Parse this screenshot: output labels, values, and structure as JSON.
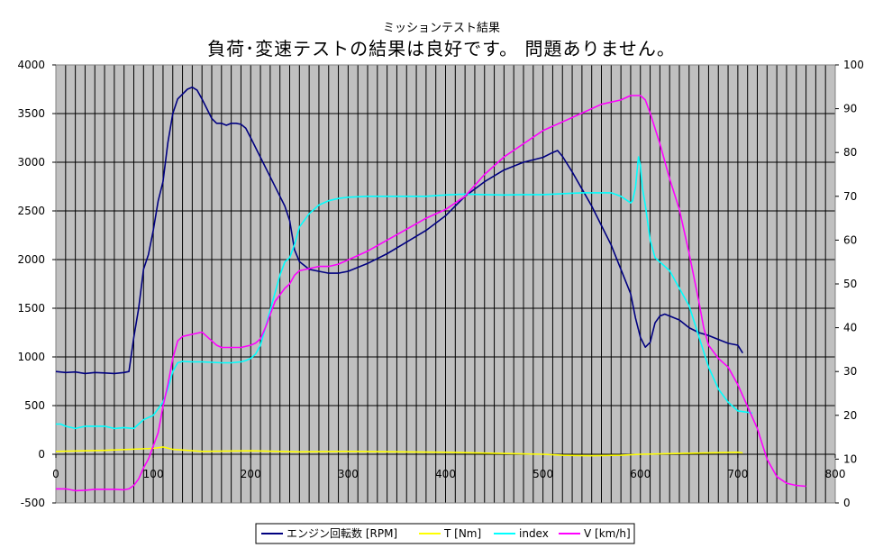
{
  "chart_data": {
    "type": "line",
    "title": "ミッションテスト結果",
    "subtitle": "負荷･変速テストの結果は良好です。 問題ありません。",
    "x_ticks": [
      0,
      100,
      200,
      300,
      400,
      500,
      600,
      700,
      800
    ],
    "xlim": [
      0,
      800
    ],
    "ylim_left": [
      -500,
      4000
    ],
    "y_ticks_left": [
      -500,
      0,
      500,
      1000,
      1500,
      2000,
      2500,
      3000,
      3500,
      4000
    ],
    "ylim_right": [
      0,
      100
    ],
    "y_ticks_right": [
      0,
      10,
      20,
      30,
      40,
      50,
      60,
      70,
      80,
      90,
      100
    ],
    "grid": true,
    "plot_background": "#c0c0c0",
    "legend_position": "bottom-center",
    "series": [
      {
        "name": "エンジン回転数 [RPM]",
        "color": "#000080",
        "axis": "left",
        "points": [
          [
            0,
            850
          ],
          [
            10,
            840
          ],
          [
            20,
            845
          ],
          [
            30,
            830
          ],
          [
            40,
            840
          ],
          [
            50,
            835
          ],
          [
            60,
            830
          ],
          [
            70,
            840
          ],
          [
            75,
            850
          ],
          [
            80,
            1200
          ],
          [
            85,
            1500
          ],
          [
            90,
            1900
          ],
          [
            95,
            2050
          ],
          [
            100,
            2300
          ],
          [
            105,
            2600
          ],
          [
            110,
            2800
          ],
          [
            115,
            3200
          ],
          [
            120,
            3500
          ],
          [
            125,
            3650
          ],
          [
            130,
            3700
          ],
          [
            135,
            3750
          ],
          [
            140,
            3770
          ],
          [
            145,
            3740
          ],
          [
            150,
            3650
          ],
          [
            155,
            3550
          ],
          [
            160,
            3450
          ],
          [
            165,
            3400
          ],
          [
            170,
            3400
          ],
          [
            175,
            3380
          ],
          [
            180,
            3400
          ],
          [
            185,
            3400
          ],
          [
            190,
            3390
          ],
          [
            195,
            3350
          ],
          [
            200,
            3250
          ],
          [
            210,
            3050
          ],
          [
            220,
            2850
          ],
          [
            230,
            2650
          ],
          [
            235,
            2550
          ],
          [
            240,
            2400
          ],
          [
            245,
            2100
          ],
          [
            250,
            1980
          ],
          [
            260,
            1900
          ],
          [
            270,
            1880
          ],
          [
            280,
            1860
          ],
          [
            290,
            1860
          ],
          [
            300,
            1880
          ],
          [
            320,
            1960
          ],
          [
            340,
            2060
          ],
          [
            360,
            2180
          ],
          [
            380,
            2300
          ],
          [
            400,
            2450
          ],
          [
            420,
            2650
          ],
          [
            440,
            2800
          ],
          [
            460,
            2920
          ],
          [
            480,
            3000
          ],
          [
            500,
            3050
          ],
          [
            510,
            3100
          ],
          [
            515,
            3120
          ],
          [
            520,
            3060
          ],
          [
            530,
            2900
          ],
          [
            550,
            2550
          ],
          [
            570,
            2150
          ],
          [
            580,
            1900
          ],
          [
            590,
            1650
          ],
          [
            595,
            1400
          ],
          [
            600,
            1200
          ],
          [
            605,
            1100
          ],
          [
            610,
            1150
          ],
          [
            615,
            1350
          ],
          [
            620,
            1420
          ],
          [
            625,
            1440
          ],
          [
            630,
            1420
          ],
          [
            640,
            1380
          ],
          [
            650,
            1300
          ],
          [
            660,
            1250
          ],
          [
            670,
            1220
          ],
          [
            680,
            1180
          ],
          [
            690,
            1140
          ],
          [
            700,
            1120
          ],
          [
            705,
            1040
          ]
        ]
      },
      {
        "name": "T [Nm]",
        "color": "#ffff00",
        "axis": "left",
        "points": [
          [
            0,
            30
          ],
          [
            50,
            40
          ],
          [
            100,
            60
          ],
          [
            110,
            75
          ],
          [
            120,
            50
          ],
          [
            150,
            30
          ],
          [
            200,
            35
          ],
          [
            250,
            25
          ],
          [
            300,
            30
          ],
          [
            350,
            25
          ],
          [
            400,
            20
          ],
          [
            450,
            10
          ],
          [
            500,
            0
          ],
          [
            520,
            -10
          ],
          [
            550,
            -15
          ],
          [
            580,
            -10
          ],
          [
            600,
            0
          ],
          [
            650,
            10
          ],
          [
            700,
            20
          ],
          [
            705,
            15
          ]
        ]
      },
      {
        "name": "index",
        "color": "#00ffff",
        "axis": "right",
        "points": [
          [
            0,
            18
          ],
          [
            5,
            18
          ],
          [
            10,
            17.5
          ],
          [
            20,
            17
          ],
          [
            30,
            17.5
          ],
          [
            40,
            17.5
          ],
          [
            50,
            17.5
          ],
          [
            60,
            17
          ],
          [
            70,
            17.2
          ],
          [
            80,
            17
          ],
          [
            85,
            18
          ],
          [
            90,
            19
          ],
          [
            100,
            20
          ],
          [
            110,
            23
          ],
          [
            115,
            26
          ],
          [
            120,
            30
          ],
          [
            125,
            32
          ],
          [
            130,
            32.3
          ],
          [
            140,
            32.2
          ],
          [
            150,
            32.2
          ],
          [
            160,
            32.1
          ],
          [
            170,
            32
          ],
          [
            180,
            32
          ],
          [
            190,
            32.2
          ],
          [
            195,
            32.5
          ],
          [
            200,
            33
          ],
          [
            205,
            34
          ],
          [
            210,
            36
          ],
          [
            215,
            40
          ],
          [
            220,
            44
          ],
          [
            225,
            48
          ],
          [
            230,
            52
          ],
          [
            235,
            55
          ],
          [
            240,
            56
          ],
          [
            245,
            59
          ],
          [
            250,
            63
          ],
          [
            260,
            66
          ],
          [
            270,
            68
          ],
          [
            280,
            69
          ],
          [
            290,
            69.5
          ],
          [
            300,
            69.8
          ],
          [
            320,
            70
          ],
          [
            340,
            70
          ],
          [
            360,
            70
          ],
          [
            380,
            70
          ],
          [
            400,
            70.3
          ],
          [
            420,
            70.5
          ],
          [
            440,
            70.4
          ],
          [
            460,
            70.3
          ],
          [
            480,
            70.4
          ],
          [
            500,
            70.4
          ],
          [
            520,
            70.6
          ],
          [
            540,
            70.8
          ],
          [
            560,
            70.8
          ],
          [
            570,
            70.8
          ],
          [
            580,
            70
          ],
          [
            590,
            68.5
          ],
          [
            592,
            69
          ],
          [
            595,
            72
          ],
          [
            598,
            79
          ],
          [
            600,
            77
          ],
          [
            602,
            72
          ],
          [
            605,
            68
          ],
          [
            610,
            60
          ],
          [
            615,
            56
          ],
          [
            620,
            55
          ],
          [
            630,
            53
          ],
          [
            640,
            49
          ],
          [
            650,
            45
          ],
          [
            660,
            38
          ],
          [
            670,
            31
          ],
          [
            680,
            26
          ],
          [
            690,
            23
          ],
          [
            700,
            21
          ],
          [
            710,
            20.7
          ],
          [
            715,
            20.5
          ]
        ]
      },
      {
        "name": "V [km/h]",
        "color": "#ff00ff",
        "axis": "right",
        "points": [
          [
            0,
            3.2
          ],
          [
            10,
            3.2
          ],
          [
            20,
            2.8
          ],
          [
            30,
            2.9
          ],
          [
            40,
            3.1
          ],
          [
            50,
            3.1
          ],
          [
            60,
            3.1
          ],
          [
            70,
            3
          ],
          [
            75,
            3.2
          ],
          [
            80,
            4
          ],
          [
            85,
            5.5
          ],
          [
            90,
            8
          ],
          [
            95,
            10
          ],
          [
            100,
            13
          ],
          [
            105,
            16
          ],
          [
            110,
            22
          ],
          [
            115,
            27
          ],
          [
            120,
            33
          ],
          [
            125,
            37
          ],
          [
            130,
            38
          ],
          [
            140,
            38.5
          ],
          [
            150,
            39
          ],
          [
            155,
            38
          ],
          [
            160,
            37
          ],
          [
            165,
            36
          ],
          [
            170,
            35.5
          ],
          [
            180,
            35.5
          ],
          [
            190,
            35.5
          ],
          [
            200,
            36
          ],
          [
            205,
            36.5
          ],
          [
            210,
            37.5
          ],
          [
            215,
            40
          ],
          [
            220,
            43
          ],
          [
            225,
            46
          ],
          [
            230,
            47.5
          ],
          [
            235,
            49
          ],
          [
            240,
            50
          ],
          [
            245,
            52
          ],
          [
            250,
            53
          ],
          [
            260,
            53.5
          ],
          [
            270,
            54
          ],
          [
            280,
            54
          ],
          [
            290,
            54.5
          ],
          [
            300,
            55.5
          ],
          [
            320,
            57.5
          ],
          [
            340,
            60
          ],
          [
            360,
            62.5
          ],
          [
            380,
            65
          ],
          [
            400,
            67
          ],
          [
            420,
            70
          ],
          [
            440,
            75
          ],
          [
            460,
            79
          ],
          [
            480,
            82
          ],
          [
            500,
            85
          ],
          [
            520,
            87
          ],
          [
            540,
            89
          ],
          [
            560,
            91
          ],
          [
            580,
            92
          ],
          [
            590,
            93
          ],
          [
            600,
            93
          ],
          [
            605,
            92
          ],
          [
            610,
            89
          ],
          [
            620,
            82
          ],
          [
            630,
            74
          ],
          [
            640,
            67
          ],
          [
            650,
            57
          ],
          [
            660,
            46
          ],
          [
            665,
            40
          ],
          [
            670,
            36
          ],
          [
            680,
            33
          ],
          [
            690,
            31
          ],
          [
            700,
            27
          ],
          [
            710,
            22
          ],
          [
            720,
            17
          ],
          [
            730,
            10
          ],
          [
            740,
            6
          ],
          [
            750,
            4.5
          ],
          [
            760,
            4
          ],
          [
            770,
            3.8
          ]
        ]
      }
    ]
  }
}
